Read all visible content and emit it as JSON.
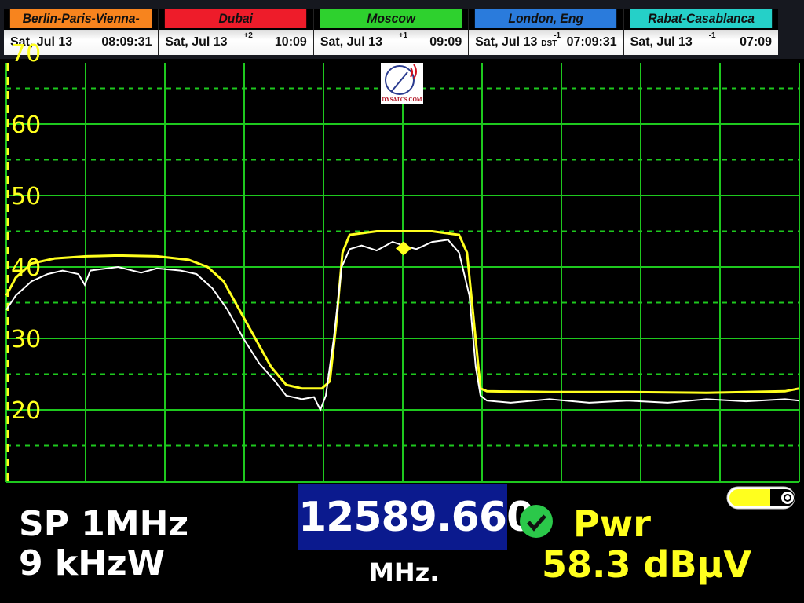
{
  "clocks": [
    {
      "city": "Berlin-Paris-Vienna-Roma",
      "date": "Sat, Jul 13",
      "offset": "",
      "dst": "",
      "time": "08:09:31",
      "color": "#f7841e"
    },
    {
      "city": "Dubai",
      "date": "Sat, Jul 13",
      "offset": "+2",
      "dst": "",
      "time": "10:09",
      "color": "#ee1c2a"
    },
    {
      "city": "Moscow",
      "date": "Sat, Jul 13",
      "offset": "+1",
      "dst": "",
      "time": "09:09",
      "color": "#2ed12e"
    },
    {
      "city": "London, Eng",
      "date": "Sat, Jul 13",
      "offset": "-1",
      "dst": "DST",
      "time": "07:09:31",
      "color": "#2a7bdc"
    },
    {
      "city": "Rabat-Casablanca",
      "date": "Sat, Jul 13",
      "offset": "-1",
      "dst": "",
      "time": "07:09",
      "color": "#25d0c8"
    }
  ],
  "logo": {
    "text": "DXSATCS.COM"
  },
  "readout": {
    "span": "SP 1MHz",
    "rbw": "9 kHzW",
    "frequency": "12589.660",
    "frequency_unit": "MHz.",
    "measure_label": "Pwr",
    "measure_value": "58.3 dBµV",
    "status": "ok"
  },
  "colors": {
    "grid": "#1ec81e",
    "axis_label": "#ffff1e",
    "max_trace": "#ffff1e",
    "live_trace": "#ffffff",
    "freq_box": "#0b1a8e"
  },
  "chart_data": {
    "type": "line",
    "ylim": [
      10,
      70
    ],
    "xlim": [
      12589.16,
      12590.16
    ],
    "yticks": [
      "20",
      "30",
      "40",
      "50",
      "60",
      "70"
    ],
    "grid": true,
    "marker": {
      "x": 12589.661,
      "y": 42.6,
      "color": "#ffff1e"
    },
    "series": [
      {
        "color": "#ffff1e",
        "points": [
          [
            12589.16,
            36
          ],
          [
            12589.172,
            38.5
          ],
          [
            12589.192,
            40.5
          ],
          [
            12589.221,
            41.2
          ],
          [
            12589.261,
            41.5
          ],
          [
            12589.301,
            41.6
          ],
          [
            12589.35,
            41.5
          ],
          [
            12589.39,
            41
          ],
          [
            12589.414,
            40
          ],
          [
            12589.434,
            38
          ],
          [
            12589.454,
            34
          ],
          [
            12589.474,
            30
          ],
          [
            12589.494,
            26
          ],
          [
            12589.513,
            23.5
          ],
          [
            12589.533,
            23
          ],
          [
            12589.558,
            23
          ],
          [
            12589.568,
            24
          ],
          [
            12589.576,
            32
          ],
          [
            12589.584,
            42
          ],
          [
            12589.593,
            44.5
          ],
          [
            12589.627,
            45
          ],
          [
            12589.661,
            45
          ],
          [
            12589.697,
            45
          ],
          [
            12589.731,
            44.5
          ],
          [
            12589.741,
            42
          ],
          [
            12589.75,
            32
          ],
          [
            12589.758,
            23
          ],
          [
            12589.766,
            22.6
          ],
          [
            12589.845,
            22.5
          ],
          [
            12589.944,
            22.5
          ],
          [
            12590.043,
            22.4
          ],
          [
            12590.142,
            22.6
          ],
          [
            12590.16,
            23
          ]
        ]
      },
      {
        "color": "#ffffff",
        "points": [
          [
            12589.16,
            34
          ],
          [
            12589.172,
            36
          ],
          [
            12589.192,
            38
          ],
          [
            12589.212,
            39
          ],
          [
            12589.231,
            39.5
          ],
          [
            12589.251,
            39
          ],
          [
            12589.259,
            37.5
          ],
          [
            12589.266,
            39.5
          ],
          [
            12589.301,
            40
          ],
          [
            12589.33,
            39.2
          ],
          [
            12589.35,
            39.8
          ],
          [
            12589.38,
            39.5
          ],
          [
            12589.4,
            39
          ],
          [
            12589.42,
            37
          ],
          [
            12589.439,
            34
          ],
          [
            12589.459,
            30
          ],
          [
            12589.479,
            26.5
          ],
          [
            12589.499,
            24
          ],
          [
            12589.513,
            22
          ],
          [
            12589.533,
            21.5
          ],
          [
            12589.548,
            21.8
          ],
          [
            12589.556,
            20
          ],
          [
            12589.563,
            22
          ],
          [
            12589.573,
            30
          ],
          [
            12589.583,
            40
          ],
          [
            12589.593,
            42.5
          ],
          [
            12589.608,
            43
          ],
          [
            12589.627,
            42.3
          ],
          [
            12589.647,
            43.5
          ],
          [
            12589.661,
            43
          ],
          [
            12589.677,
            42.5
          ],
          [
            12589.697,
            43.5
          ],
          [
            12589.717,
            43.8
          ],
          [
            12589.731,
            42
          ],
          [
            12589.744,
            36
          ],
          [
            12589.752,
            26
          ],
          [
            12589.758,
            22
          ],
          [
            12589.766,
            21.3
          ],
          [
            12589.796,
            21
          ],
          [
            12589.845,
            21.5
          ],
          [
            12589.895,
            21
          ],
          [
            12589.944,
            21.3
          ],
          [
            12589.994,
            21
          ],
          [
            12590.043,
            21.5
          ],
          [
            12590.093,
            21.2
          ],
          [
            12590.142,
            21.5
          ],
          [
            12590.16,
            21.3
          ]
        ]
      }
    ]
  }
}
